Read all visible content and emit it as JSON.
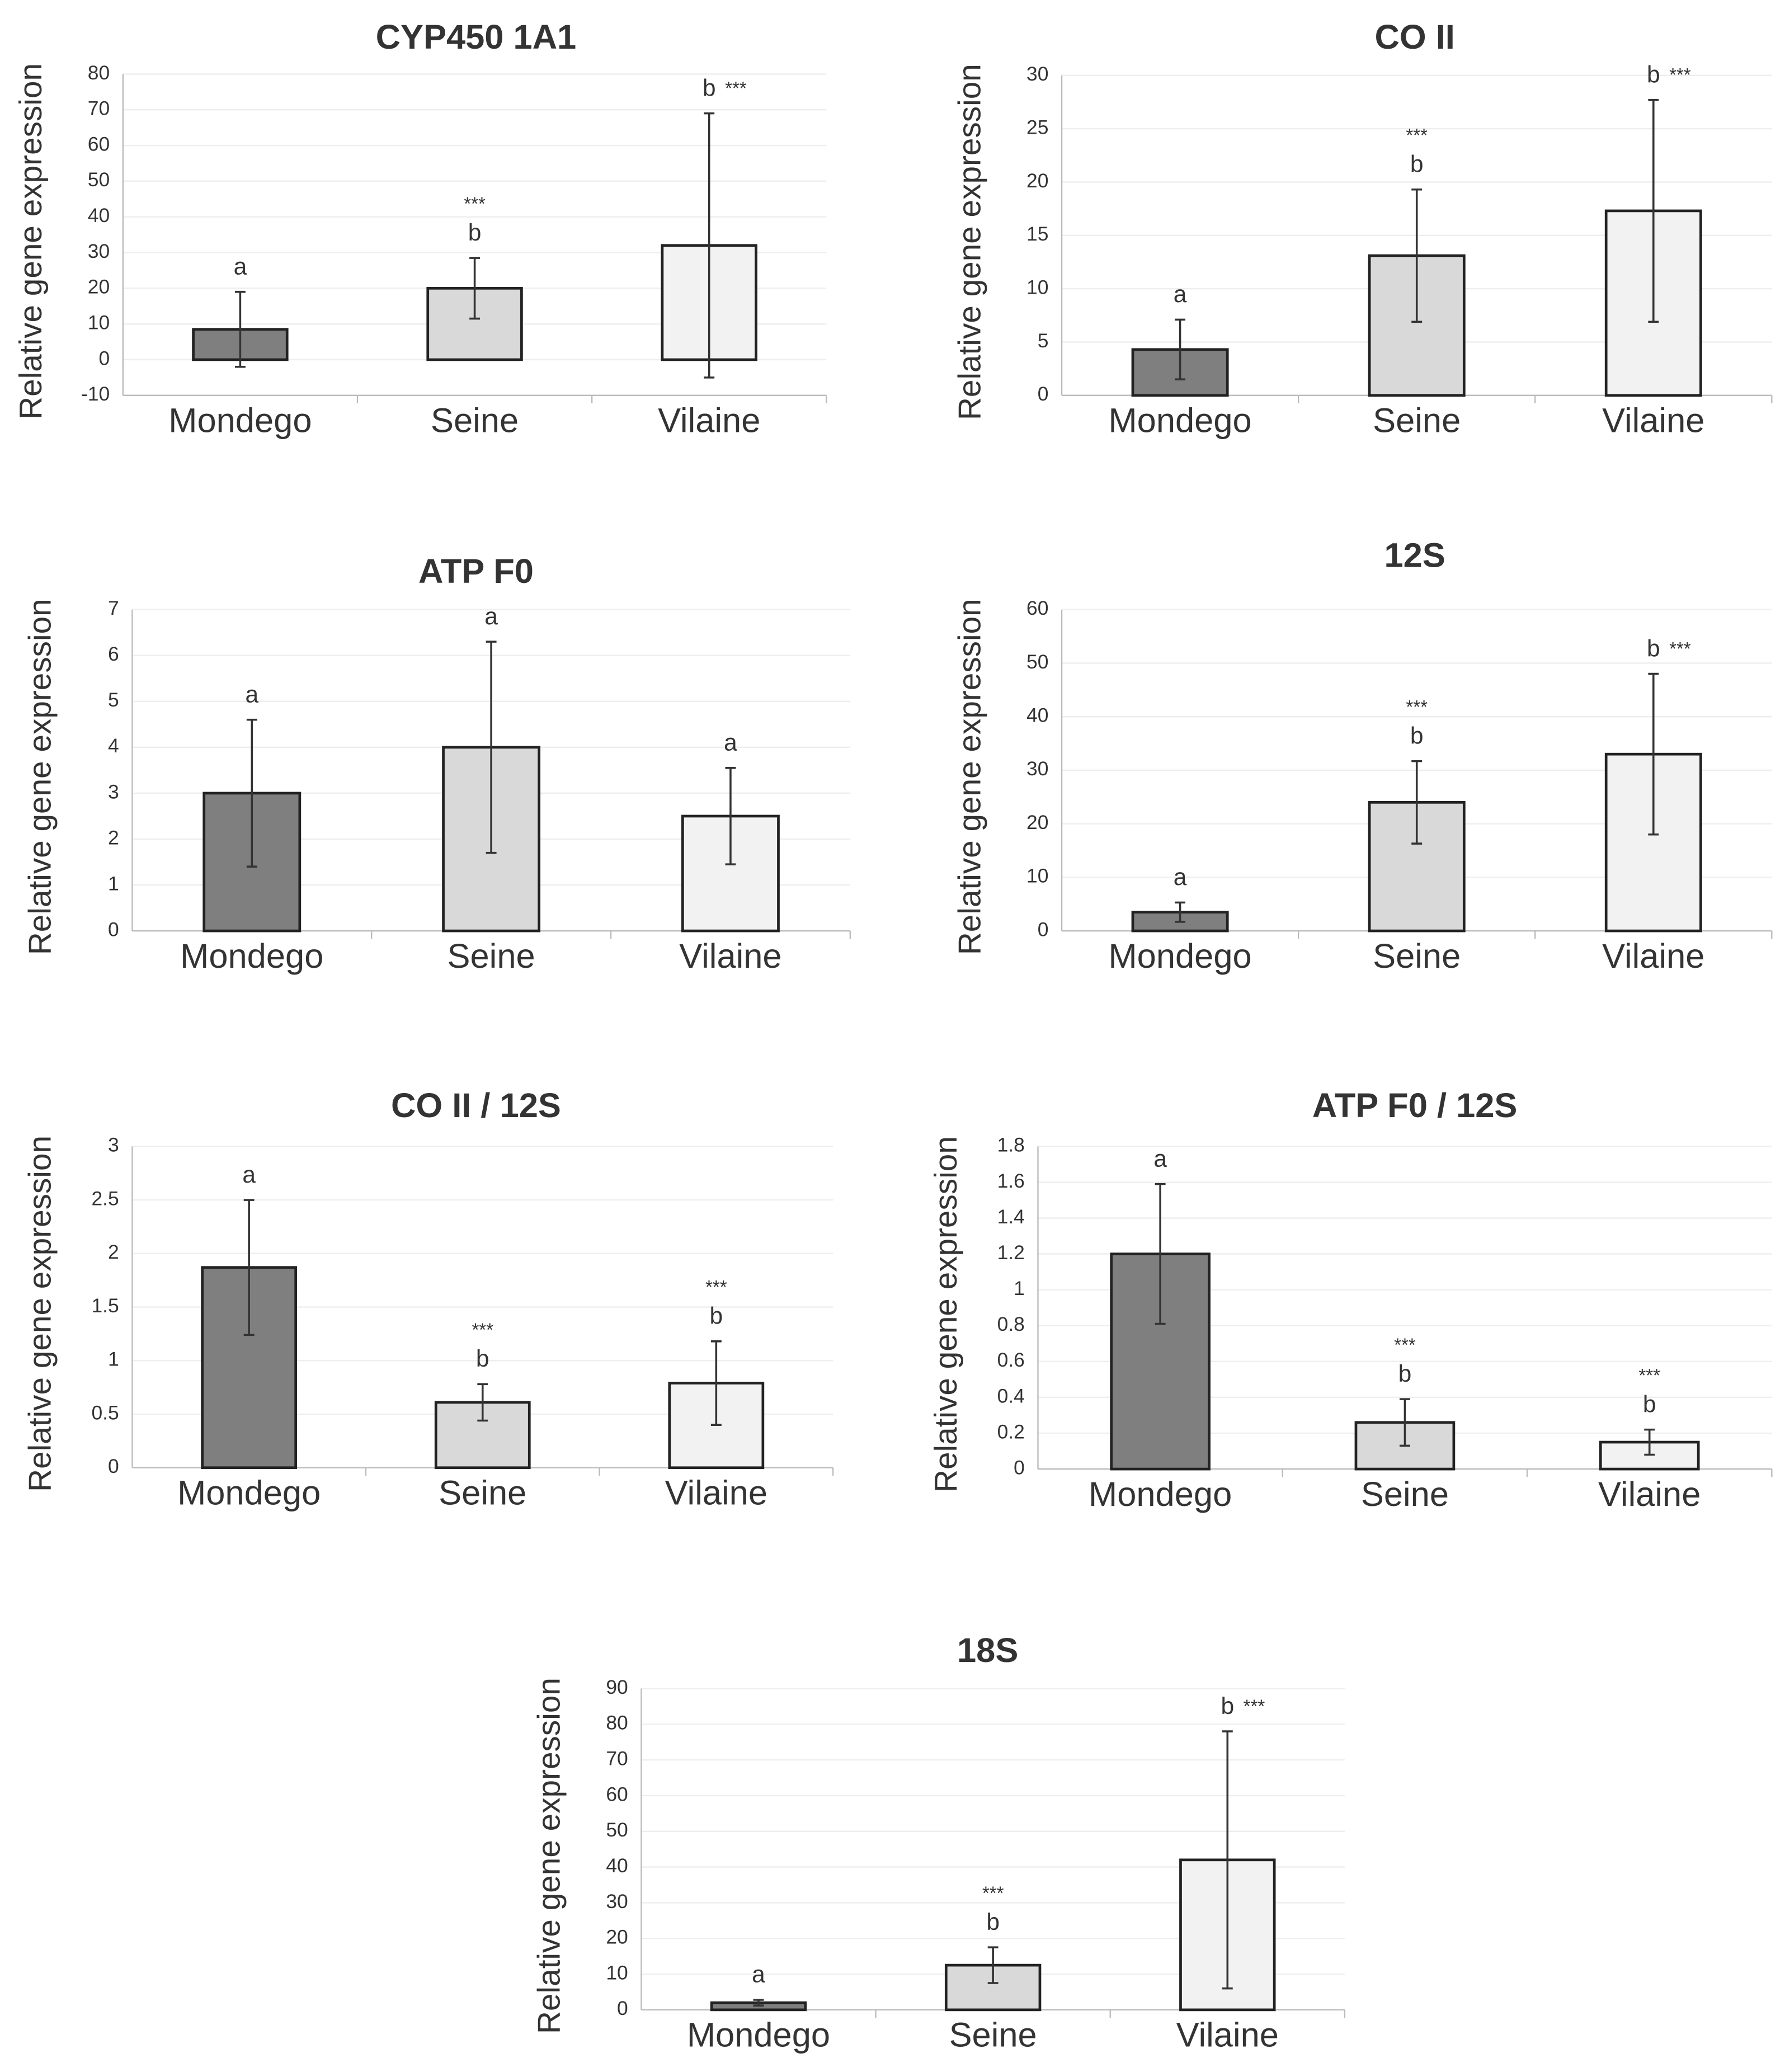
{
  "chart_data": [
    {
      "type": "bar",
      "title": "CYP450 1A1",
      "y_label": "Relative gene expression",
      "categories": [
        "Mondego",
        "Seine",
        "Vilaine"
      ],
      "values": [
        8.5,
        20,
        32
      ],
      "errors": [
        10.5,
        8.5,
        37
      ],
      "colors": [
        "#7f7f7f",
        "#d9d9d9",
        "#f2f2f2"
      ],
      "letters": [
        "a",
        "b",
        "b"
      ],
      "stars": [
        null,
        "***",
        "***"
      ],
      "ylim": [
        -10,
        80
      ],
      "yticks": [
        -10,
        0,
        10,
        20,
        30,
        40,
        50,
        60,
        70,
        80
      ],
      "grid": true
    },
    {
      "type": "bar",
      "title": "CO II",
      "y_label": "Relative gene expression",
      "categories": [
        "Mondego",
        "Seine",
        "Vilaine"
      ],
      "values": [
        4.3,
        13.1,
        17.3
      ],
      "errors": [
        2.8,
        6.2,
        10.4
      ],
      "colors": [
        "#7f7f7f",
        "#d9d9d9",
        "#f2f2f2"
      ],
      "letters": [
        "a",
        "b",
        "b"
      ],
      "stars": [
        null,
        "***",
        "***"
      ],
      "ylim": [
        0,
        30
      ],
      "yticks": [
        0,
        5,
        10,
        15,
        20,
        25,
        30
      ],
      "grid": true
    },
    {
      "type": "bar",
      "title": "ATP F0",
      "y_label": "Relative gene expression",
      "categories": [
        "Mondego",
        "Seine",
        "Vilaine"
      ],
      "values": [
        3.0,
        4.0,
        2.5
      ],
      "errors": [
        1.6,
        2.3,
        1.05
      ],
      "colors": [
        "#7f7f7f",
        "#d9d9d9",
        "#f2f2f2"
      ],
      "letters": [
        "a",
        "a",
        "a"
      ],
      "stars": [
        null,
        null,
        null
      ],
      "ylim": [
        0,
        7
      ],
      "yticks": [
        0,
        1,
        2,
        3,
        4,
        5,
        6,
        7
      ],
      "grid": true
    },
    {
      "type": "bar",
      "title": "12S",
      "y_label": "Relative gene expression",
      "categories": [
        "Mondego",
        "Seine",
        "Vilaine"
      ],
      "values": [
        3.5,
        24,
        33
      ],
      "errors": [
        1.8,
        7.7,
        15
      ],
      "colors": [
        "#7f7f7f",
        "#d9d9d9",
        "#f2f2f2"
      ],
      "letters": [
        "a",
        "b",
        "b"
      ],
      "stars": [
        null,
        "***",
        "***"
      ],
      "ylim": [
        0,
        60
      ],
      "yticks": [
        0,
        10,
        20,
        30,
        40,
        50,
        60
      ],
      "grid": true
    },
    {
      "type": "bar",
      "title": "CO II / 12S",
      "y_label": "Relative gene expression",
      "categories": [
        "Mondego",
        "Seine",
        "Vilaine"
      ],
      "values": [
        1.87,
        0.61,
        0.79
      ],
      "errors": [
        0.63,
        0.17,
        0.39
      ],
      "colors": [
        "#7f7f7f",
        "#d9d9d9",
        "#f2f2f2"
      ],
      "letters": [
        "a",
        "b",
        "b"
      ],
      "stars": [
        null,
        "***",
        "***"
      ],
      "ylim": [
        0,
        3
      ],
      "yticks": [
        0,
        0.5,
        1,
        1.5,
        2,
        2.5,
        3
      ],
      "grid": true
    },
    {
      "type": "bar",
      "title": "ATP F0 / 12S",
      "y_label": "Relative gene expression",
      "categories": [
        "Mondego",
        "Seine",
        "Vilaine"
      ],
      "values": [
        1.2,
        0.26,
        0.15
      ],
      "errors": [
        0.39,
        0.13,
        0.07
      ],
      "colors": [
        "#7f7f7f",
        "#d9d9d9",
        "#f2f2f2"
      ],
      "letters": [
        "a",
        "b",
        "b"
      ],
      "stars": [
        null,
        "***",
        "***"
      ],
      "ylim": [
        0,
        1.8
      ],
      "yticks": [
        0,
        0.2,
        0.4,
        0.6,
        0.8,
        1,
        1.2,
        1.4,
        1.6,
        1.8
      ],
      "grid": true
    },
    {
      "type": "bar",
      "title": "18S",
      "y_label": "Relative gene expression",
      "categories": [
        "Mondego",
        "Seine",
        "Vilaine"
      ],
      "values": [
        2,
        12.5,
        42
      ],
      "errors": [
        0.8,
        5,
        36
      ],
      "colors": [
        "#7f7f7f",
        "#d9d9d9",
        "#f2f2f2"
      ],
      "letters": [
        "a",
        "b",
        "b"
      ],
      "stars": [
        null,
        "***",
        "***"
      ],
      "ylim": [
        0,
        90
      ],
      "yticks": [
        0,
        10,
        20,
        30,
        40,
        50,
        60,
        70,
        80,
        90
      ],
      "grid": true
    }
  ]
}
